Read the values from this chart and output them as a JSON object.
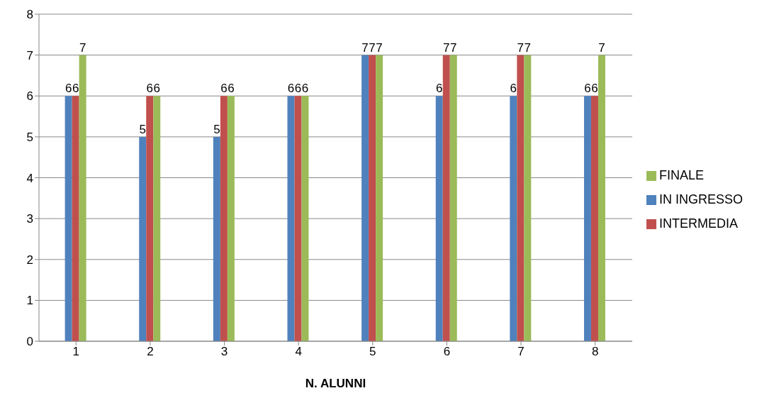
{
  "chart_data": {
    "type": "bar",
    "xlabel": "N. ALUNNI",
    "categories": [
      "1",
      "2",
      "3",
      "4",
      "5",
      "6",
      "7",
      "8"
    ],
    "series": [
      {
        "name": "IN INGRESSO",
        "color": "#4f81bd",
        "values": [
          6,
          5,
          5,
          6,
          7,
          6,
          6,
          6
        ]
      },
      {
        "name": "INTERMEDIA",
        "color": "#c0504d",
        "values": [
          6,
          6,
          6,
          6,
          7,
          7,
          7,
          6
        ]
      },
      {
        "name": "FINALE",
        "color": "#9bbb59",
        "values": [
          7,
          6,
          6,
          6,
          7,
          7,
          7,
          7
        ]
      }
    ],
    "ylim": [
      0,
      8
    ],
    "yticks": [
      0,
      1,
      2,
      3,
      4,
      5,
      6,
      7,
      8
    ],
    "grid": "y",
    "legend": "right",
    "data_labels": true
  }
}
